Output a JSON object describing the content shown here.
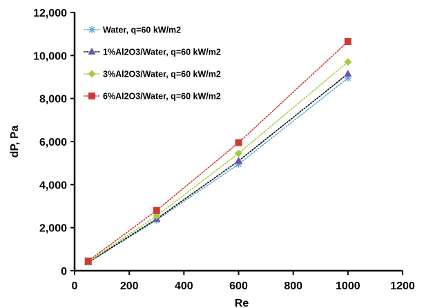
{
  "chart_data": {
    "type": "line",
    "title": "",
    "xlabel": "Re",
    "ylabel": "dP, Pa",
    "xlim": [
      0,
      1200
    ],
    "ylim": [
      0,
      12000
    ],
    "x_ticks": [
      0,
      200,
      400,
      600,
      800,
      1000,
      1200
    ],
    "y_ticks": [
      0,
      2000,
      4000,
      6000,
      8000,
      10000,
      12000
    ],
    "x_tick_labels": [
      "0",
      "200",
      "400",
      "600",
      "800",
      "1000",
      "1200"
    ],
    "y_tick_labels": [
      "0",
      "2,000",
      "4,000",
      "6,000",
      "8,000",
      "10,000",
      "12,000"
    ],
    "grid": false,
    "legend_position": "top-left",
    "x": [
      50,
      300,
      600,
      1000
    ],
    "series": [
      {
        "name": "Water, q=60 kW/m2",
        "values": [
          380,
          2350,
          4950,
          8950
        ],
        "color": "#5aa9dc",
        "marker": "star",
        "line": "dotted"
      },
      {
        "name": "1%Al2O3/Water, q=60 kW/m2",
        "values": [
          390,
          2400,
          5100,
          9150
        ],
        "color": "#6f52a8",
        "marker": "triangle",
        "line": "dotted",
        "line_color": "#000000"
      },
      {
        "name": "3%Al2O3/Water, q=60 kW/m2",
        "values": [
          410,
          2550,
          5450,
          9700
        ],
        "color": "#a8cc3c",
        "marker": "diamond",
        "line": "dotted"
      },
      {
        "name": "6%Al2O3/Water, q=60 kW/m2",
        "values": [
          450,
          2800,
          5950,
          10650
        ],
        "color": "#d03a32",
        "marker": "square",
        "line": "dotted"
      }
    ]
  }
}
